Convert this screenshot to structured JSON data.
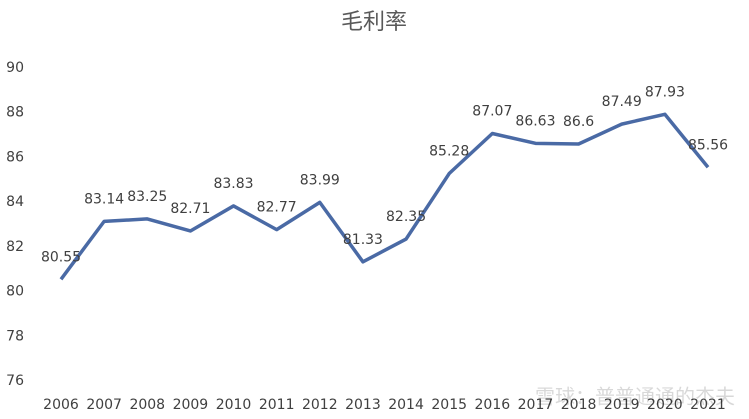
{
  "chart_data": {
    "type": "line",
    "title": "毛利率",
    "categories": [
      "2006",
      "2007",
      "2008",
      "2009",
      "2010",
      "2011",
      "2012",
      "2013",
      "2014",
      "2015",
      "2016",
      "2017",
      "2018",
      "2019",
      "2020",
      "2021"
    ],
    "series": [
      {
        "name": "毛利率",
        "color": "#4a6aa5",
        "values": [
          80.55,
          83.14,
          83.25,
          82.71,
          83.83,
          82.77,
          83.99,
          81.33,
          82.35,
          85.28,
          87.07,
          86.63,
          86.6,
          87.49,
          87.93,
          85.56
        ]
      }
    ],
    "ylim": [
      76,
      90
    ],
    "yticks": [
      76,
      78,
      80,
      82,
      84,
      86,
      88,
      90
    ],
    "drop_lines": true,
    "watermark": "雪球：普普通通的杰夫"
  }
}
